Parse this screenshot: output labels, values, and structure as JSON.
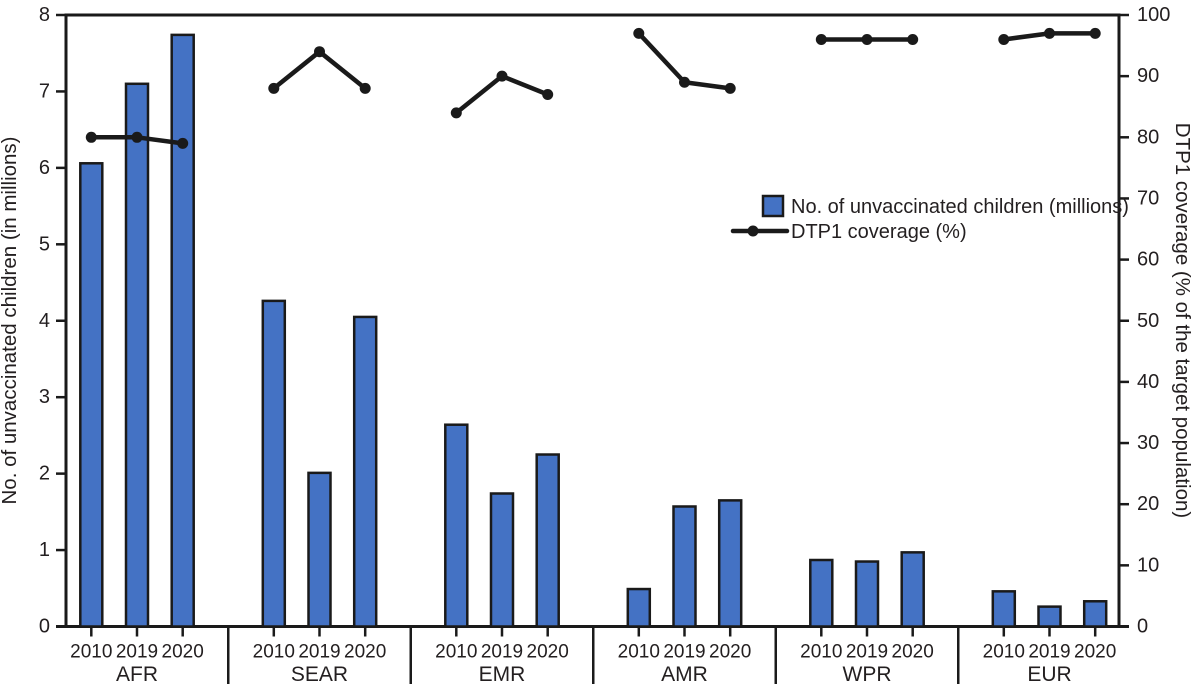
{
  "figure": {
    "background": "#ffffff",
    "description": "Combo chart: number of unvaccinated children (bars, left axis) and DTP1 coverage (line, right axis) by WHO region for 2010, 2019, 2020"
  },
  "chart_data": {
    "type": "combo-grouped-bar-and-line-dual-axis",
    "categories": [
      "AFR",
      "SEAR",
      "EMR",
      "AMR",
      "WPR",
      "EUR"
    ],
    "x_sublabels": [
      "2010",
      "2019",
      "2020"
    ],
    "series": [
      {
        "name": "No. of unvaccinated children (millions)",
        "type": "bar",
        "axis": "left",
        "values": [
          [
            6.06,
            7.1,
            7.74
          ],
          [
            4.26,
            2.01,
            4.05
          ],
          [
            2.64,
            1.74,
            2.25
          ],
          [
            0.49,
            1.57,
            1.65
          ],
          [
            0.87,
            0.85,
            0.97
          ],
          [
            0.46,
            0.26,
            0.33
          ]
        ]
      },
      {
        "name": "DTP1 coverage (%)",
        "type": "line",
        "axis": "right",
        "values": [
          [
            80,
            80,
            79
          ],
          [
            88,
            94,
            88
          ],
          [
            84,
            90,
            87
          ],
          [
            97,
            89,
            88
          ],
          [
            96,
            96,
            96
          ],
          [
            96,
            97,
            97
          ]
        ]
      }
    ],
    "left_axis": {
      "label": "No. of unvaccinated children (in millions)",
      "min": 0,
      "max": 8,
      "tick_step": 1
    },
    "right_axis": {
      "label": "DTP1 coverage (% of the target population)",
      "min": 0,
      "max": 100,
      "tick_step": 10
    },
    "legend_position": "inside-top-right",
    "grid": false,
    "colors": {
      "bar_fill": "#4472c4",
      "stroke": "#1a1a1a",
      "text": "#231f20"
    }
  }
}
